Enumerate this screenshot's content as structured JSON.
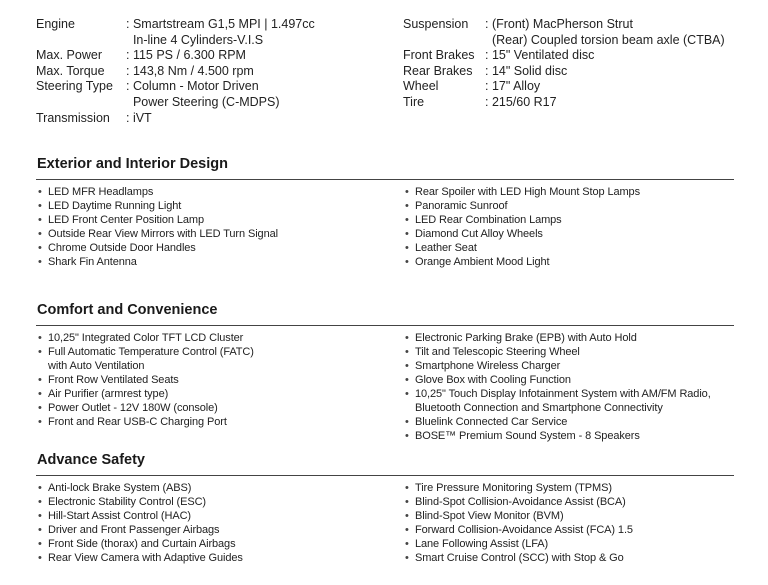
{
  "specs_left": [
    {
      "label": "Engine",
      "lines": [
        ": Smartstream G1,5 MPI | 1.497cc",
        "  In-line 4 Cylinders-V.I.S"
      ]
    },
    {
      "label": "Max. Power",
      "lines": [
        ": 115 PS / 6.300 RPM"
      ]
    },
    {
      "label": "Max. Torque",
      "lines": [
        ": 143,8 Nm / 4.500 rpm"
      ]
    },
    {
      "label": "Steering Type",
      "lines": [
        ": Column - Motor Driven",
        "  Power Steering (C-MDPS)"
      ]
    },
    {
      "label": "Transmission",
      "lines": [
        ": iVT"
      ]
    }
  ],
  "specs_right": [
    {
      "label": "Suspension",
      "lines": [
        ": (Front) MacPherson Strut",
        "  (Rear) Coupled torsion beam axle (CTBA)"
      ]
    },
    {
      "label": "Front Brakes",
      "lines": [
        ": 15\" Ventilated disc"
      ]
    },
    {
      "label": "Rear Brakes",
      "lines": [
        ": 14\" Solid disc"
      ]
    },
    {
      "label": "Wheel",
      "lines": [
        ": 17\" Alloy"
      ]
    },
    {
      "label": "Tire",
      "lines": [
        ": 215/60 R17"
      ]
    }
  ],
  "sections": [
    {
      "title": "Exterior and Interior Design",
      "left": [
        [
          "LED MFR Headlamps"
        ],
        [
          "LED Daytime Running Light"
        ],
        [
          "LED Front Center Position Lamp"
        ],
        [
          "Outside Rear View Mirrors with LED Turn Signal"
        ],
        [
          "Chrome Outside Door Handles"
        ],
        [
          "Shark Fin Antenna"
        ]
      ],
      "right": [
        [
          "Rear Spoiler with LED High Mount Stop Lamps"
        ],
        [
          "Panoramic Sunroof"
        ],
        [
          "LED Rear Combination Lamps"
        ],
        [
          "Diamond Cut Alloy Wheels"
        ],
        [
          "Leather Seat"
        ],
        [
          "Orange Ambient Mood Light"
        ]
      ]
    },
    {
      "title": "Comfort and Convenience",
      "left": [
        [
          "10,25\" Integrated Color TFT LCD Cluster"
        ],
        [
          "Full Automatic Temperature Control (FATC)",
          "with Auto Ventilation"
        ],
        [
          "Front Row Ventilated Seats"
        ],
        [
          "Air Purifier (armrest type)"
        ],
        [
          "Power Outlet - 12V 180W (console)"
        ],
        [
          "Front and Rear USB-C Charging Port"
        ]
      ],
      "right": [
        [
          "Electronic Parking Brake (EPB) with Auto Hold"
        ],
        [
          "Tilt and Telescopic Steering Wheel"
        ],
        [
          "Smartphone Wireless Charger"
        ],
        [
          "Glove Box with Cooling Function"
        ],
        [
          "10,25\" Touch Display Infotainment System with AM/FM Radio,",
          "Bluetooth Connection and Smartphone Connectivity"
        ],
        [
          "Bluelink Connected Car Service"
        ],
        [
          "BOSE™ Premium Sound System - 8 Speakers"
        ]
      ]
    },
    {
      "title": "Advance Safety",
      "left": [
        [
          "Anti-lock Brake System (ABS)"
        ],
        [
          "Electronic Stability Control (ESC)"
        ],
        [
          "Hill-Start Assist Control (HAC)"
        ],
        [
          "Driver and Front Passenger Airbags"
        ],
        [
          "Front Side (thorax) and Curtain Airbags"
        ],
        [
          "Rear View Camera with Adaptive Guides"
        ]
      ],
      "right": [
        [
          "Tire Pressure Monitoring System (TPMS)"
        ],
        [
          "Blind-Spot Collision-Avoidance Assist (BCA)"
        ],
        [
          "Blind-Spot View Monitor (BVM)"
        ],
        [
          "Forward Collision-Avoidance Assist (FCA) 1.5"
        ],
        [
          "Lane Following Assist (LFA)"
        ],
        [
          "Smart Cruise Control (SCC) with Stop & Go"
        ]
      ]
    }
  ]
}
